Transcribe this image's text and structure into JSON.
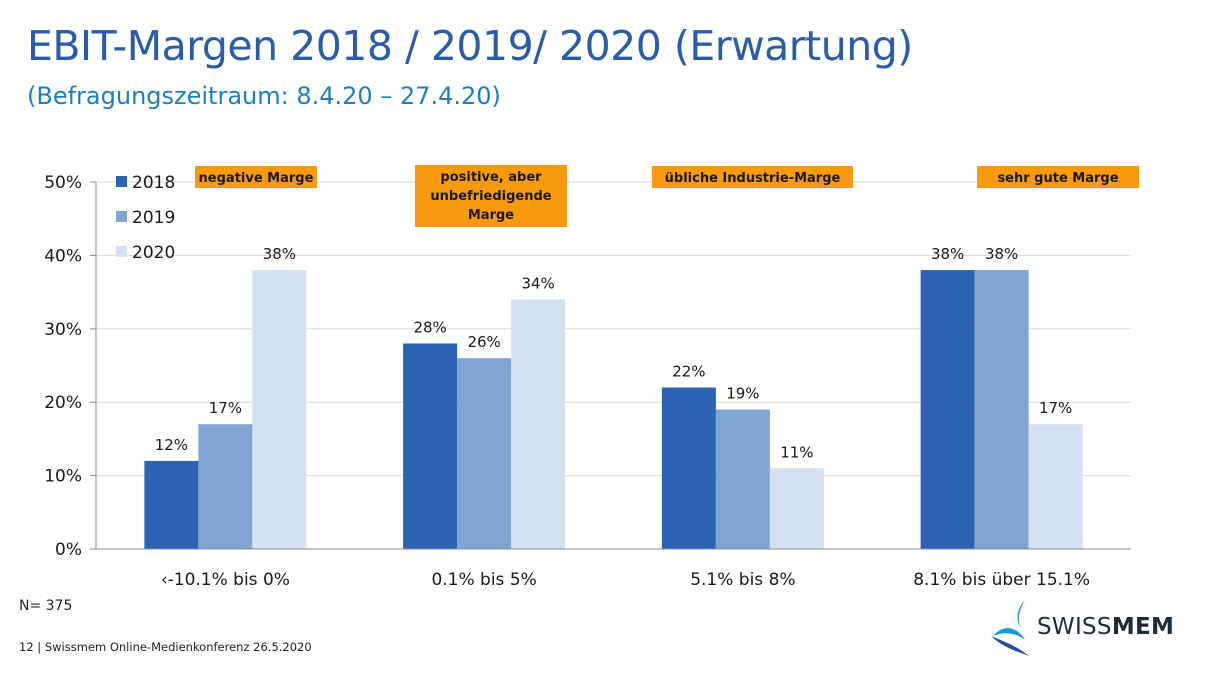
{
  "header": {
    "title": "EBIT-Margen 2018 / 2019/ 2020 (Erwartung)",
    "subtitle": "(Befragungszeitraum: 8.4.20 – 27.4.20)"
  },
  "colors": {
    "title": "#2a5ca8",
    "subtitle": "#1d7fc1",
    "series_2018": "#2b62b4",
    "series_2019": "#7fa3d2",
    "series_2020": "#d5e1f0",
    "category_box": "#f79a10"
  },
  "chart_data": {
    "type": "bar",
    "categories": [
      "‹-10.1% bis 0%",
      "0.1% bis 5%",
      "5.1% bis 8%",
      "8.1% bis über 15.1%"
    ],
    "series": [
      {
        "name": "2018",
        "values": [
          12,
          28,
          22,
          38
        ]
      },
      {
        "name": "2019",
        "values": [
          17,
          26,
          19,
          38
        ]
      },
      {
        "name": "2020",
        "values": [
          38,
          34,
          11,
          17
        ]
      }
    ],
    "value_suffix": "%",
    "ylim": [
      0,
      50
    ],
    "yticks": [
      0,
      10,
      20,
      30,
      40,
      50
    ],
    "ytick_labels": [
      "0%",
      "10%",
      "20%",
      "30%",
      "40%",
      "50%"
    ],
    "grid": true,
    "legend_position": "top-left",
    "category_annotations": [
      "negative Marge",
      "positive, aber unbefriedigende Marge",
      "übliche Industrie-Marge",
      "sehr gute Marge"
    ],
    "xlabel": "",
    "ylabel": ""
  },
  "footnote": "N= 375",
  "footer": "12 | Swissmem Online-Medienkonferenz 26.5.2020",
  "logo": {
    "light": "SWISS",
    "bold": "MEM"
  }
}
